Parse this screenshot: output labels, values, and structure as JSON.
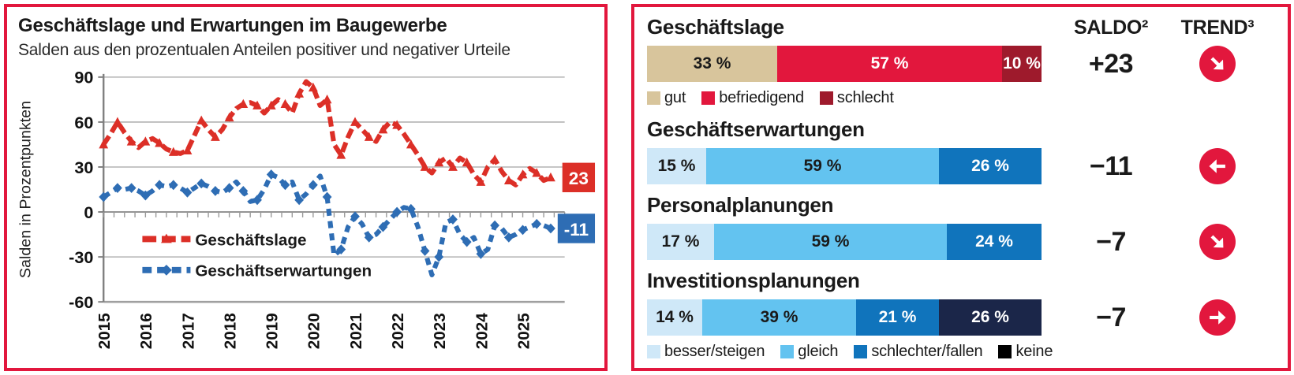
{
  "left_panel": {
    "title": "Geschäftslage und Erwartungen im Baugewerbe",
    "subtitle": "Salden aus den prozentualen Anteilen positiver und negativer Urteile",
    "y_axis_label": "Salden in Prozentpunkten",
    "legend": {
      "lage_label": "Geschäftslage",
      "erwartungen_label": "Geschäftserwartungen"
    },
    "end_value_labels": {
      "lage": "23",
      "erwartungen": "-11"
    }
  },
  "chart_data": {
    "type": "line",
    "title": "Geschäftslage und Erwartungen im Baugewerbe",
    "subtitle": "Salden aus den prozentualen Anteilen positiver und negativer Urteile",
    "ylabel": "Salden in Prozentpunkten",
    "xlabel": "",
    "ylim": [
      -60,
      90
    ],
    "y_ticks": [
      90,
      60,
      30,
      0,
      -30,
      -60
    ],
    "x_tick_labels": [
      "2015",
      "2016",
      "2017",
      "2018",
      "2019",
      "2020",
      "2021",
      "2022",
      "2023",
      "2024",
      "2025"
    ],
    "x_start_year": 2015,
    "points_per_year": 6,
    "grid": true,
    "legend_position": "inside-lower-left",
    "series": [
      {
        "name": "Geschäftslage",
        "color": "#dc2f27",
        "marker": "triangle",
        "line_style": "thick-dashed",
        "last_value_label": "23",
        "values": [
          45,
          52,
          60,
          53,
          47,
          43,
          47,
          49,
          46,
          42,
          40,
          39,
          41,
          51,
          61,
          55,
          50,
          55,
          63,
          69,
          72,
          73,
          71,
          66,
          71,
          75,
          72,
          66,
          79,
          87,
          83,
          71,
          75,
          45,
          38,
          50,
          60,
          55,
          50,
          47,
          55,
          60,
          58,
          52,
          45,
          38,
          30,
          26,
          33,
          36,
          30,
          36,
          33,
          25,
          20,
          30,
          35,
          27,
          21,
          18,
          25,
          29,
          26,
          21,
          23
        ]
      },
      {
        "name": "Geschäftserwartungen",
        "color": "#2e6db4",
        "marker": "diamond",
        "line_style": "thick-dashed",
        "last_value_label": "-11",
        "values": [
          10,
          13,
          16,
          15,
          16,
          14,
          11,
          14,
          18,
          17,
          18,
          16,
          13,
          16,
          19,
          17,
          14,
          13,
          16,
          20,
          14,
          7,
          8,
          15,
          25,
          23,
          18,
          20,
          8,
          12,
          18,
          24,
          10,
          -29,
          -25,
          -10,
          -3,
          -8,
          -17,
          -15,
          -10,
          -5,
          0,
          3,
          2,
          -10,
          -26,
          -42,
          -30,
          -7,
          -5,
          -15,
          -20,
          -17,
          -28,
          -25,
          -9,
          -11,
          -17,
          -15,
          -12,
          -10,
          -8,
          -9,
          -11
        ]
      }
    ]
  },
  "right_panel": {
    "saldo_header": "SALDO²",
    "trend_header": "TREND³",
    "sections": [
      {
        "title": "Geschäftslage",
        "saldo": "+23",
        "trend": {
          "direction": "down-right"
        },
        "bar": [
          {
            "label": "33 %",
            "value": 33,
            "color": "#d8c59c",
            "text_color": "#1a1a1a"
          },
          {
            "label": "57 %",
            "value": 57,
            "color": "#e2173d",
            "text_color": "#ffffff"
          },
          {
            "label": "10 %",
            "value": 10,
            "color": "#9e1a2c",
            "text_color": "#ffffff"
          }
        ],
        "legend": [
          {
            "label": "gut",
            "color": "#d8c59c"
          },
          {
            "label": "befriedigend",
            "color": "#e2173d"
          },
          {
            "label": "schlecht",
            "color": "#9e1a2c"
          }
        ]
      },
      {
        "title": "Geschäftserwartungen",
        "saldo": "−11",
        "trend": {
          "direction": "left"
        },
        "bar": [
          {
            "label": "15 %",
            "value": 15,
            "color": "#cfe8f8",
            "text_color": "#1a1a1a"
          },
          {
            "label": "59 %",
            "value": 59,
            "color": "#63c3f0",
            "text_color": "#1a1a1a"
          },
          {
            "label": "26 %",
            "value": 26,
            "color": "#1074bc",
            "text_color": "#ffffff"
          }
        ]
      },
      {
        "title": "Personalplanungen",
        "saldo": "−7",
        "trend": {
          "direction": "down-right"
        },
        "bar": [
          {
            "label": "17 %",
            "value": 17,
            "color": "#cfe8f8",
            "text_color": "#1a1a1a"
          },
          {
            "label": "59 %",
            "value": 59,
            "color": "#63c3f0",
            "text_color": "#1a1a1a"
          },
          {
            "label": "24 %",
            "value": 24,
            "color": "#1074bc",
            "text_color": "#ffffff"
          }
        ]
      },
      {
        "title": "Investitionsplanungen",
        "saldo": "−7",
        "trend": {
          "direction": "right"
        },
        "bar": [
          {
            "label": "14 %",
            "value": 14,
            "color": "#cfe8f8",
            "text_color": "#1a1a1a"
          },
          {
            "label": "39 %",
            "value": 39,
            "color": "#63c3f0",
            "text_color": "#1a1a1a"
          },
          {
            "label": "21 %",
            "value": 21,
            "color": "#1074bc",
            "text_color": "#ffffff"
          },
          {
            "label": "26 %",
            "value": 26,
            "color": "#1b2649",
            "text_color": "#ffffff"
          }
        ],
        "legend": [
          {
            "label": "besser/steigen",
            "color": "#cfe8f8"
          },
          {
            "label": "gleich",
            "color": "#63c3f0"
          },
          {
            "label": "schlechter/fallen",
            "color": "#1074bc"
          },
          {
            "label": "keine",
            "color": "#000000"
          }
        ]
      }
    ]
  },
  "colors": {
    "frame": "#e2173d",
    "crimson": "#e2173d",
    "dark_red": "#9e1a2c",
    "tan": "#d8c59c",
    "light_blue": "#cfe8f8",
    "mid_blue": "#63c3f0",
    "dark_blue": "#1074bc",
    "navy": "#1b2649",
    "line_red": "#dc2f27",
    "line_blue": "#2e6db4",
    "grid_gray": "#b3b3b3"
  }
}
